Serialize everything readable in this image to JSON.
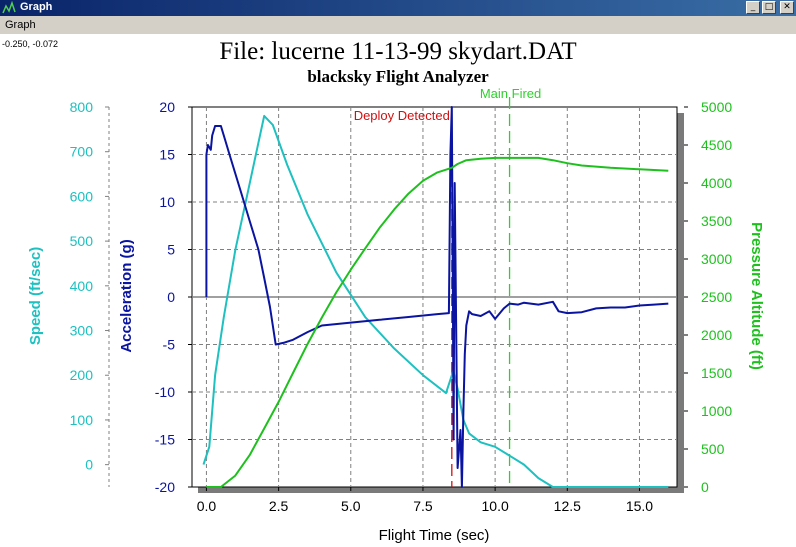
{
  "window": {
    "title": "Graph",
    "buttons": {
      "minimize": "_",
      "maximize": "□",
      "close": "✕"
    }
  },
  "menubar": {
    "items": [
      "Graph"
    ]
  },
  "cursor_readout": "-0.250, -0.072",
  "colors": {
    "speed": "#1ec0c0",
    "acceleration": "#0a14a0",
    "altitude": "#1ec01e",
    "deploy": "#d01010",
    "main": "#2ed02e",
    "grid": "#808080",
    "zero_line": "#808080"
  },
  "chart_data": {
    "type": "line",
    "title": "File: lucerne 11-13-99 skydart.DAT",
    "subtitle": "blacksky Flight Analyzer",
    "xlabel": "Flight Time (sec)",
    "xlim": [
      -0.5,
      16.3
    ],
    "xticks": [
      0.0,
      2.5,
      5.0,
      7.5,
      10.0,
      12.5,
      15.0
    ],
    "xtick_labels": [
      "0.0",
      "2.5",
      "5.0",
      "7.5",
      "10.0",
      "12.5",
      "15.0"
    ],
    "grid": true,
    "axes": {
      "speed": {
        "label": "Speed (ft/sec)",
        "range": [
          -50,
          800
        ],
        "ticks": [
          0,
          100,
          200,
          300,
          400,
          500,
          600,
          700,
          800
        ],
        "tick_labels": [
          "0",
          "100",
          "200",
          "300",
          "400",
          "500",
          "600",
          "700",
          "800"
        ]
      },
      "acceleration": {
        "label": "Acceleration (g)",
        "range": [
          -20,
          20
        ],
        "ticks": [
          -20,
          -15,
          -10,
          -5,
          0,
          5,
          10,
          15,
          20
        ],
        "tick_labels": [
          "-20",
          "-15",
          "-10",
          "-5",
          "0",
          "5",
          "10",
          "15",
          "20"
        ]
      },
      "altitude": {
        "label": "Pressure Altitude (ft)",
        "range": [
          0,
          5000
        ],
        "ticks": [
          0,
          500,
          1000,
          1500,
          2000,
          2500,
          3000,
          3500,
          4000,
          4500,
          5000
        ],
        "tick_labels": [
          "0",
          "500",
          "1000",
          "1500",
          "2000",
          "2500",
          "3000",
          "3500",
          "4000",
          "4500",
          "5000"
        ]
      }
    },
    "series": [
      {
        "name": "Speed",
        "axis": "speed",
        "color": "#1ec0c0",
        "x": [
          -0.1,
          0.1,
          0.3,
          0.6,
          1.0,
          1.4,
          1.8,
          2.0,
          2.3,
          2.8,
          3.5,
          4.5,
          5.5,
          6.5,
          7.5,
          8.3,
          8.55,
          8.7,
          8.9,
          9.1,
          9.5,
          10.0,
          10.5,
          11.0,
          11.5,
          12.0,
          12.5,
          13.5,
          14.5,
          16.0
        ],
        "y": [
          0,
          40,
          200,
          330,
          480,
          600,
          720,
          780,
          760,
          670,
          560,
          430,
          330,
          260,
          200,
          160,
          210,
          170,
          100,
          70,
          50,
          40,
          20,
          0,
          -30,
          -50,
          -50,
          -50,
          -50,
          -50
        ]
      },
      {
        "name": "Acceleration",
        "axis": "acceleration",
        "color": "#0a14a0",
        "x": [
          0.0,
          0.0,
          0.05,
          0.15,
          0.2,
          0.3,
          0.4,
          0.5,
          0.6,
          0.8,
          1.0,
          1.2,
          1.5,
          1.8,
          2.0,
          2.2,
          2.3,
          2.4,
          2.7,
          3.0,
          3.5,
          4.0,
          5.0,
          6.0,
          7.0,
          8.0,
          8.4,
          8.45,
          8.5,
          8.53,
          8.56,
          8.6,
          8.7,
          8.8,
          8.85,
          8.9,
          8.95,
          9.0,
          9.1,
          9.2,
          9.5,
          9.8,
          10.0,
          10.3,
          10.5,
          10.8,
          11.0,
          11.5,
          12.0,
          12.2,
          12.5,
          13.0,
          13.5,
          14.0,
          14.5,
          15.0,
          15.5,
          16.0
        ],
        "y": [
          0,
          15,
          16,
          15.5,
          17,
          18,
          18,
          18,
          17,
          15,
          13,
          11,
          8,
          5,
          2,
          -1,
          -3,
          -5,
          -4.8,
          -4.5,
          -3.7,
          -3,
          -2.7,
          -2.4,
          -2.1,
          -1.8,
          -1.7,
          15,
          20,
          4,
          -15,
          12,
          -18,
          -14,
          -20,
          -12,
          -6,
          -3,
          -1.5,
          -1.8,
          -2.0,
          -1.5,
          -2.3,
          -1.2,
          -0.7,
          -0.8,
          -0.6,
          -0.8,
          -0.5,
          -1.5,
          -1.7,
          -1.6,
          -1.2,
          -1.1,
          -1.1,
          -0.9,
          -0.8,
          -0.7
        ]
      },
      {
        "name": "Pressure Altitude",
        "axis": "altitude",
        "color": "#1ec01e",
        "x": [
          0.0,
          0.5,
          1.0,
          1.5,
          2.0,
          2.5,
          3.0,
          3.5,
          4.0,
          4.5,
          5.0,
          5.5,
          6.0,
          6.5,
          7.0,
          7.5,
          8.0,
          8.5,
          8.7,
          9.0,
          9.5,
          10.0,
          10.5,
          11.0,
          11.5,
          12.0,
          12.5,
          13.0,
          14.0,
          15.0,
          16.0
        ],
        "y": [
          0,
          0,
          150,
          420,
          770,
          1120,
          1500,
          1880,
          2230,
          2560,
          2860,
          3140,
          3410,
          3650,
          3860,
          4030,
          4140,
          4200,
          4250,
          4300,
          4320,
          4330,
          4330,
          4330,
          4330,
          4300,
          4260,
          4230,
          4200,
          4180,
          4160
        ]
      }
    ],
    "annotations": [
      {
        "label": "Deploy Detected",
        "x": 8.5,
        "color": "#d01010"
      },
      {
        "label": "Main Fired",
        "x": 10.5,
        "color": "#2ed02e"
      }
    ]
  }
}
